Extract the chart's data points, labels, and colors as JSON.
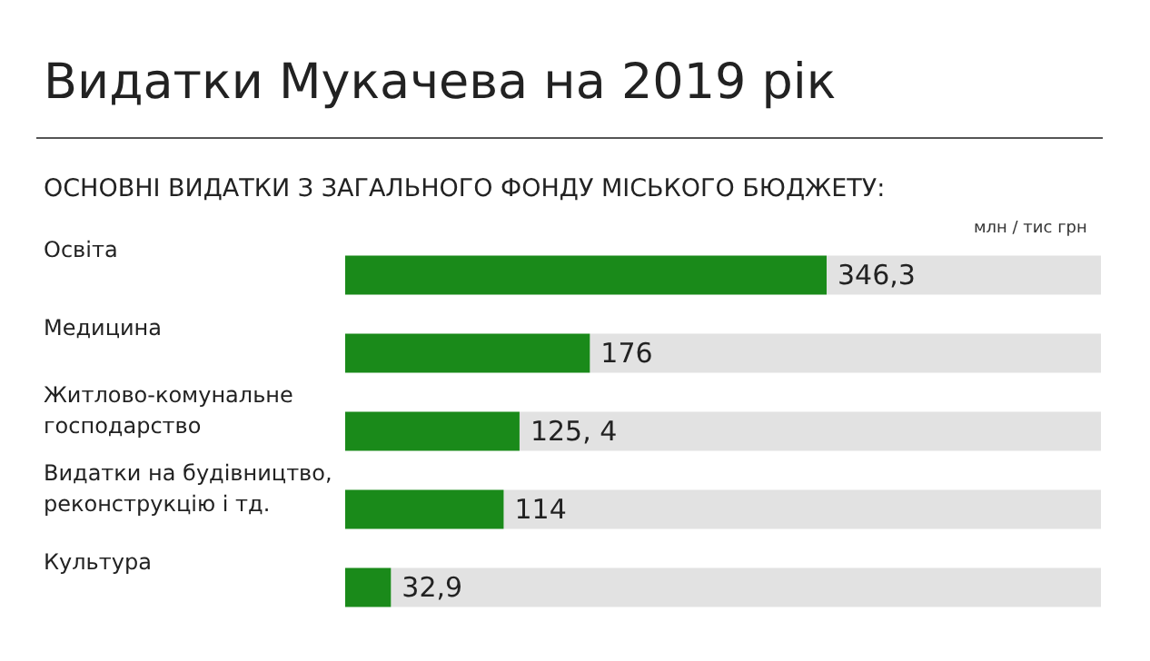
{
  "chart_data": {
    "type": "bar",
    "orientation": "horizontal",
    "title": "Видатки Мукачева на 2019 рік",
    "subtitle": "ОСНОВНІ ВИДАТКИ З ЗАГАЛЬНОГО ФОНДУ МІСЬКОГО БЮДЖЕТУ:",
    "annotations": [
      "млн / тис грн"
    ],
    "categories": [
      "Освіта",
      "Медицина",
      "Житлово-комунальне господарство",
      "Видатки на будівництво, реконструкцію і тд.",
      "Культура"
    ],
    "values": [
      346.3,
      176,
      125.4,
      114,
      32.9
    ],
    "value_labels": [
      "346,3",
      "176",
      "125, 4",
      "114",
      "32,9"
    ],
    "color": "#1a8a1a"
  }
}
